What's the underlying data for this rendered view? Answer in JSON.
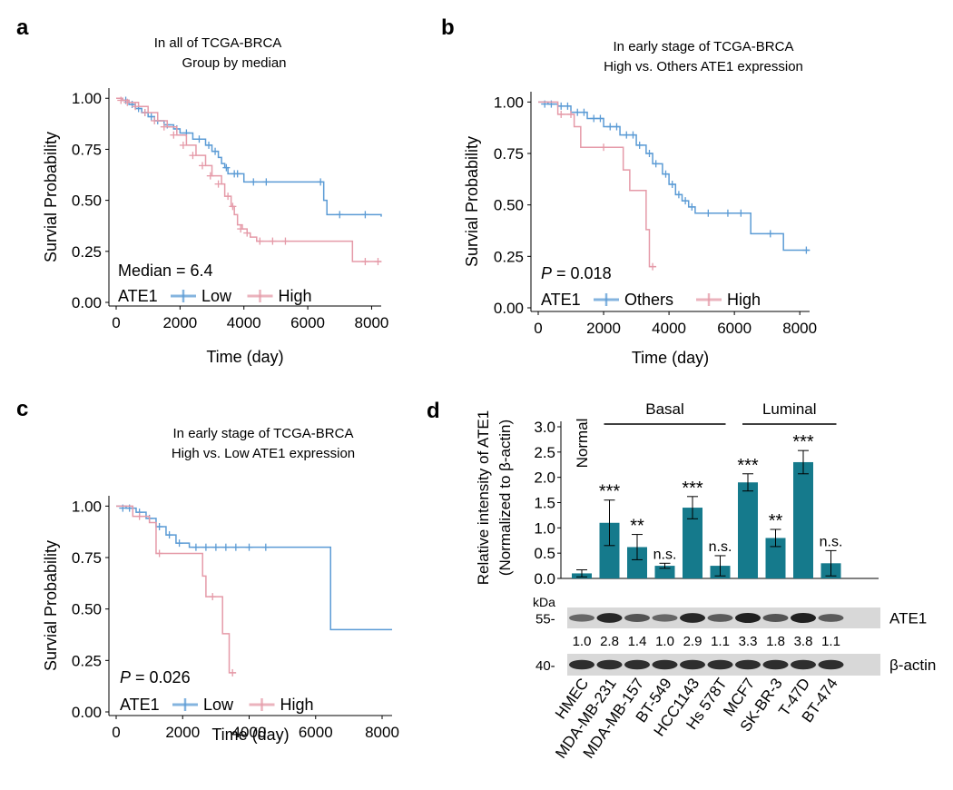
{
  "colors": {
    "low": "#5b9bd5",
    "high": "#e59aa8",
    "bar": "#157a8c",
    "axis": "#000000"
  },
  "chart_data": [
    {
      "id": "a",
      "type": "line",
      "panel_label": "a",
      "title_lines": [
        "In all of TCGA-BRCA",
        "Group by median"
      ],
      "xlabel": "Time (day)",
      "ylabel": "Survial Probability",
      "xlim": [
        0,
        8300
      ],
      "ylim": [
        0,
        1.05
      ],
      "xticks": [
        0,
        2000,
        4000,
        6000,
        8000
      ],
      "yticks": [
        0.0,
        0.25,
        0.5,
        0.75,
        1.0
      ],
      "ytick_labels": [
        "0.00",
        "0.25",
        "0.50",
        "0.75",
        "1.00"
      ],
      "annotation": {
        "italic_prefix": "",
        "text": "Median = 6.4"
      },
      "legend": {
        "title": "ATE1",
        "entries": [
          {
            "label": "Low",
            "color_key": "low"
          },
          {
            "label": "High",
            "color_key": "high"
          }
        ]
      },
      "series": [
        {
          "name": "Low",
          "color_key": "low",
          "steps": [
            [
              0,
              1.0
            ],
            [
              200,
              0.99
            ],
            [
              400,
              0.97
            ],
            [
              600,
              0.95
            ],
            [
              800,
              0.93
            ],
            [
              1000,
              0.91
            ],
            [
              1200,
              0.89
            ],
            [
              1500,
              0.87
            ],
            [
              1800,
              0.85
            ],
            [
              2000,
              0.83
            ],
            [
              2400,
              0.8
            ],
            [
              2800,
              0.77
            ],
            [
              3000,
              0.74
            ],
            [
              3200,
              0.71
            ],
            [
              3300,
              0.68
            ],
            [
              3400,
              0.66
            ],
            [
              3500,
              0.63
            ],
            [
              4000,
              0.59
            ],
            [
              6200,
              0.59
            ],
            [
              6500,
              0.5
            ],
            [
              6600,
              0.43
            ],
            [
              8300,
              0.42
            ]
          ],
          "censors": [
            [
              300,
              0.99
            ],
            [
              500,
              0.97
            ],
            [
              700,
              0.95
            ],
            [
              900,
              0.93
            ],
            [
              1100,
              0.91
            ],
            [
              1300,
              0.89
            ],
            [
              1600,
              0.87
            ],
            [
              1900,
              0.85
            ],
            [
              2200,
              0.83
            ],
            [
              2600,
              0.8
            ],
            [
              2900,
              0.77
            ],
            [
              3100,
              0.74
            ],
            [
              3450,
              0.66
            ],
            [
              3700,
              0.63
            ],
            [
              3800,
              0.63
            ],
            [
              4300,
              0.59
            ],
            [
              4700,
              0.59
            ],
            [
              6400,
              0.59
            ],
            [
              7000,
              0.43
            ],
            [
              7800,
              0.43
            ]
          ]
        },
        {
          "name": "High",
          "color_key": "high",
          "steps": [
            [
              0,
              1.0
            ],
            [
              200,
              0.99
            ],
            [
              400,
              0.98
            ],
            [
              700,
              0.96
            ],
            [
              1000,
              0.93
            ],
            [
              1300,
              0.89
            ],
            [
              1600,
              0.86
            ],
            [
              1900,
              0.82
            ],
            [
              2200,
              0.77
            ],
            [
              2500,
              0.72
            ],
            [
              2800,
              0.67
            ],
            [
              3000,
              0.62
            ],
            [
              3300,
              0.58
            ],
            [
              3400,
              0.52
            ],
            [
              3600,
              0.47
            ],
            [
              3700,
              0.43
            ],
            [
              3800,
              0.38
            ],
            [
              3950,
              0.36
            ],
            [
              4100,
              0.34
            ],
            [
              4200,
              0.32
            ],
            [
              4400,
              0.3
            ],
            [
              6300,
              0.3
            ],
            [
              7400,
              0.2
            ],
            [
              8300,
              0.2
            ]
          ],
          "censors": [
            [
              150,
              0.99
            ],
            [
              350,
              0.98
            ],
            [
              600,
              0.96
            ],
            [
              900,
              0.93
            ],
            [
              1200,
              0.89
            ],
            [
              1500,
              0.86
            ],
            [
              1800,
              0.82
            ],
            [
              2100,
              0.77
            ],
            [
              2400,
              0.72
            ],
            [
              2700,
              0.67
            ],
            [
              2950,
              0.62
            ],
            [
              3200,
              0.58
            ],
            [
              3500,
              0.52
            ],
            [
              3650,
              0.47
            ],
            [
              3900,
              0.36
            ],
            [
              4100,
              0.34
            ],
            [
              4500,
              0.3
            ],
            [
              4900,
              0.3
            ],
            [
              5300,
              0.3
            ],
            [
              7800,
              0.2
            ],
            [
              8200,
              0.2
            ]
          ]
        }
      ]
    },
    {
      "id": "b",
      "type": "line",
      "panel_label": "b",
      "title_lines": [
        "In early stage of TCGA-BRCA",
        "High vs. Others ATE1 expression"
      ],
      "xlabel": "Time (day)",
      "ylabel": "Survial Probability",
      "xlim": [
        0,
        8300
      ],
      "ylim": [
        0,
        1.05
      ],
      "xticks": [
        0,
        2000,
        4000,
        6000,
        8000
      ],
      "yticks": [
        0.0,
        0.25,
        0.5,
        0.75,
        1.0
      ],
      "ytick_labels": [
        "0.00",
        "0.25",
        "0.50",
        "0.75",
        "1.00"
      ],
      "annotation": {
        "italic_prefix": "P",
        "text": " = 0.018"
      },
      "legend": {
        "title": "ATE1",
        "entries": [
          {
            "label": "Others",
            "color_key": "low"
          },
          {
            "label": "High",
            "color_key": "high"
          }
        ]
      },
      "series": [
        {
          "name": "Others",
          "color_key": "low",
          "steps": [
            [
              0,
              1.0
            ],
            [
              300,
              0.99
            ],
            [
              600,
              0.98
            ],
            [
              1000,
              0.95
            ],
            [
              1500,
              0.92
            ],
            [
              2000,
              0.88
            ],
            [
              2500,
              0.84
            ],
            [
              3000,
              0.79
            ],
            [
              3300,
              0.75
            ],
            [
              3500,
              0.7
            ],
            [
              3800,
              0.65
            ],
            [
              4000,
              0.6
            ],
            [
              4200,
              0.55
            ],
            [
              4400,
              0.52
            ],
            [
              4600,
              0.49
            ],
            [
              4800,
              0.46
            ],
            [
              6300,
              0.46
            ],
            [
              6500,
              0.36
            ],
            [
              7500,
              0.28
            ],
            [
              8300,
              0.28
            ]
          ],
          "censors": [
            [
              200,
              0.99
            ],
            [
              400,
              0.99
            ],
            [
              700,
              0.98
            ],
            [
              900,
              0.98
            ],
            [
              1200,
              0.95
            ],
            [
              1400,
              0.95
            ],
            [
              1700,
              0.92
            ],
            [
              1900,
              0.92
            ],
            [
              2200,
              0.88
            ],
            [
              2400,
              0.88
            ],
            [
              2700,
              0.84
            ],
            [
              2900,
              0.84
            ],
            [
              3100,
              0.79
            ],
            [
              3400,
              0.75
            ],
            [
              3600,
              0.7
            ],
            [
              3900,
              0.65
            ],
            [
              4100,
              0.6
            ],
            [
              4300,
              0.55
            ],
            [
              4500,
              0.52
            ],
            [
              4700,
              0.49
            ],
            [
              5200,
              0.46
            ],
            [
              5800,
              0.46
            ],
            [
              6200,
              0.46
            ],
            [
              7100,
              0.36
            ],
            [
              8200,
              0.28
            ]
          ]
        },
        {
          "name": "High",
          "color_key": "high",
          "steps": [
            [
              0,
              1.0
            ],
            [
              600,
              0.94
            ],
            [
              1100,
              0.88
            ],
            [
              1300,
              0.78
            ],
            [
              2600,
              0.67
            ],
            [
              2800,
              0.57
            ],
            [
              3200,
              0.57
            ],
            [
              3300,
              0.38
            ],
            [
              3400,
              0.2
            ],
            [
              3600,
              0.2
            ]
          ],
          "censors": [
            [
              700,
              0.94
            ],
            [
              1000,
              0.94
            ],
            [
              2000,
              0.78
            ],
            [
              3500,
              0.2
            ]
          ]
        }
      ]
    },
    {
      "id": "c",
      "type": "line",
      "panel_label": "c",
      "title_lines": [
        "In early stage of TCGA-BRCA",
        "High vs. Low ATE1 expression"
      ],
      "xlabel": "Time (day)",
      "ylabel": "Survial Probability",
      "xlim": [
        0,
        8300
      ],
      "ylim": [
        0,
        1.05
      ],
      "xticks": [
        0,
        2000,
        4000,
        6000,
        8000
      ],
      "yticks": [
        0.0,
        0.25,
        0.5,
        0.75,
        1.0
      ],
      "ytick_labels": [
        "0.00",
        "0.25",
        "0.50",
        "0.75",
        "1.00"
      ],
      "annotation": {
        "italic_prefix": "P",
        "text": " = 0.026"
      },
      "legend": {
        "title": "ATE1",
        "entries": [
          {
            "label": "Low",
            "color_key": "low"
          },
          {
            "label": "High",
            "color_key": "high"
          }
        ]
      },
      "series": [
        {
          "name": "Low",
          "color_key": "low",
          "steps": [
            [
              0,
              1.0
            ],
            [
              300,
              0.99
            ],
            [
              600,
              0.97
            ],
            [
              900,
              0.94
            ],
            [
              1200,
              0.9
            ],
            [
              1500,
              0.86
            ],
            [
              1800,
              0.82
            ],
            [
              2200,
              0.8
            ],
            [
              6400,
              0.8
            ],
            [
              6450,
              0.4
            ],
            [
              8300,
              0.4
            ]
          ],
          "censors": [
            [
              200,
              0.99
            ],
            [
              400,
              0.99
            ],
            [
              700,
              0.97
            ],
            [
              1000,
              0.94
            ],
            [
              1300,
              0.9
            ],
            [
              1600,
              0.86
            ],
            [
              1900,
              0.82
            ],
            [
              2400,
              0.8
            ],
            [
              2700,
              0.8
            ],
            [
              3000,
              0.8
            ],
            [
              3300,
              0.8
            ],
            [
              3600,
              0.8
            ],
            [
              4000,
              0.8
            ],
            [
              4500,
              0.8
            ]
          ]
        },
        {
          "name": "High",
          "color_key": "high",
          "steps": [
            [
              0,
              1.0
            ],
            [
              500,
              0.95
            ],
            [
              1000,
              0.92
            ],
            [
              1200,
              0.77
            ],
            [
              2600,
              0.66
            ],
            [
              2700,
              0.56
            ],
            [
              3200,
              0.38
            ],
            [
              3400,
              0.19
            ],
            [
              3600,
              0.19
            ]
          ],
          "censors": [
            [
              700,
              0.95
            ],
            [
              1300,
              0.77
            ],
            [
              2900,
              0.56
            ],
            [
              3500,
              0.19
            ]
          ]
        }
      ]
    },
    {
      "id": "d",
      "type": "bar",
      "panel_label": "d",
      "ylabel_lines": [
        "Relative intensity of ATE1",
        "(Normalized to β-actin)"
      ],
      "ylim": [
        0,
        3.0
      ],
      "yticks": [
        0,
        0.5,
        1.0,
        1.5,
        2.0,
        2.5,
        3.0
      ],
      "ytick_labels": [
        "0.0",
        "0.5",
        "1.0",
        "1.5",
        "2.0",
        "2.5",
        "3.0"
      ],
      "categories": [
        "HMEC",
        "MDA-MB-231",
        "MDA-MB-157",
        "BT-549",
        "HCC1143",
        "Hs 578T",
        "MCF7",
        "SK-BR-3",
        "T-47D",
        "BT-474"
      ],
      "values": [
        0.1,
        1.1,
        0.62,
        0.25,
        1.4,
        0.25,
        1.9,
        0.8,
        2.3,
        0.3
      ],
      "errors": [
        0.07,
        0.45,
        0.25,
        0.05,
        0.22,
        0.2,
        0.17,
        0.17,
        0.23,
        0.25
      ],
      "significance": [
        "",
        "***",
        "**",
        "n.s.",
        "***",
        "n.s.",
        "***",
        "**",
        "***",
        "n.s."
      ],
      "groups": [
        {
          "label": "Normal",
          "vertical": true,
          "from": 0,
          "to": 0
        },
        {
          "label": "Basal",
          "vertical": false,
          "from": 1,
          "to": 5
        },
        {
          "label": "Luminal",
          "vertical": false,
          "from": 6,
          "to": 9
        }
      ],
      "blot": {
        "kda_label": "kDa",
        "rows": [
          {
            "protein": "ATE1",
            "kda": "55-",
            "intensity": [
              0.45,
              0.95,
              0.6,
              0.45,
              0.95,
              0.55,
              1.0,
              0.6,
              1.0,
              0.55
            ]
          },
          {
            "protein": "β-actin",
            "kda": "40-",
            "intensity": [
              0.9,
              0.9,
              0.9,
              0.9,
              0.9,
              0.9,
              0.9,
              0.9,
              0.9,
              0.9
            ]
          }
        ],
        "ratios": [
          "1.0",
          "2.8",
          "1.4",
          "1.0",
          "2.9",
          "1.1",
          "3.3",
          "1.8",
          "3.8",
          "1.1"
        ]
      }
    }
  ]
}
